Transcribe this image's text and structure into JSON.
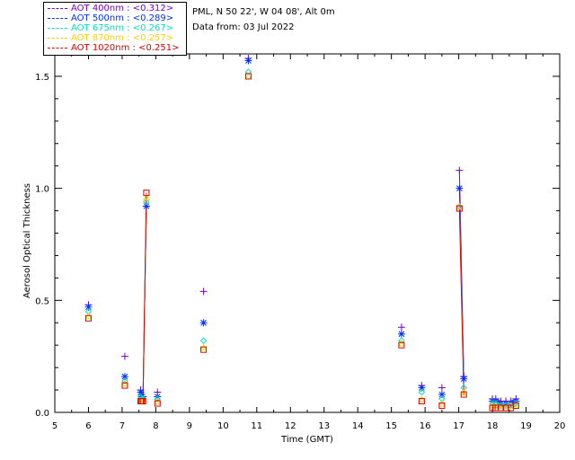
{
  "legend": [
    {
      "label": "AOT  400nm : <0.312>",
      "color": "#7a00c8"
    },
    {
      "label": "AOT  500nm : <0.289>",
      "color": "#0030ff"
    },
    {
      "label": "AOT  675nm : <0.267>",
      "color": "#00e0c0"
    },
    {
      "label": "AOT  870nm : <0.257>",
      "color": "#ffd000"
    },
    {
      "label": "AOT 1020nm : <0.251>",
      "color": "#e00000"
    }
  ],
  "info": {
    "site": "PML, N 50 22', W 04 08', Alt 0m",
    "date": "Data from: 03 Jul 2022"
  },
  "chart_data": {
    "type": "scatter",
    "title": "",
    "xlabel": "Time (GMT)",
    "ylabel": "Aerosol Optical Thickness",
    "xlim": [
      5,
      20
    ],
    "ylim": [
      0,
      1.6
    ],
    "xticks": [
      "5",
      "6",
      "7",
      "8",
      "9",
      "10",
      "11",
      "12",
      "13",
      "14",
      "15",
      "16",
      "17",
      "18",
      "19",
      "20"
    ],
    "yticks": [
      "0.0",
      "0.5",
      "1.0",
      "1.5"
    ],
    "x": [
      6.0,
      7.08,
      7.55,
      7.58,
      7.62,
      7.72,
      8.05,
      9.42,
      10.75,
      15.3,
      15.9,
      16.5,
      17.02,
      17.15,
      18.0,
      18.1,
      18.25,
      18.4,
      18.55,
      18.7
    ],
    "series": [
      {
        "name": "AOT 400nm",
        "marker": "plus",
        "color": "#7a00c8",
        "values": [
          0.48,
          0.25,
          0.1,
          0.08,
          0.07,
          0.92,
          0.09,
          0.54,
          1.58,
          0.38,
          0.12,
          0.11,
          1.08,
          0.16,
          0.06,
          0.06,
          0.05,
          0.05,
          0.05,
          0.06
        ]
      },
      {
        "name": "AOT 500nm",
        "marker": "asterisk",
        "color": "#0030ff",
        "values": [
          0.47,
          0.16,
          0.09,
          0.07,
          0.06,
          0.92,
          0.07,
          0.4,
          1.57,
          0.35,
          0.11,
          0.08,
          1.0,
          0.15,
          0.05,
          0.05,
          0.04,
          0.04,
          0.04,
          0.05
        ]
      },
      {
        "name": "AOT 675nm",
        "marker": "diamond",
        "color": "#00e0c0",
        "values": [
          0.45,
          0.14,
          0.07,
          0.06,
          0.06,
          0.94,
          0.06,
          0.32,
          1.52,
          0.32,
          0.09,
          0.06,
          0.92,
          0.11,
          0.04,
          0.04,
          0.03,
          0.03,
          0.03,
          0.04
        ]
      },
      {
        "name": "AOT 870nm",
        "marker": "triangle",
        "color": "#ffd000",
        "values": [
          0.43,
          0.13,
          0.05,
          0.05,
          0.05,
          0.96,
          0.05,
          0.29,
          1.5,
          0.31,
          0.06,
          0.04,
          0.92,
          0.09,
          0.03,
          0.03,
          0.02,
          0.02,
          0.03,
          0.03
        ]
      },
      {
        "name": "AOT 1020nm",
        "marker": "square",
        "color": "#e00000",
        "values": [
          0.42,
          0.12,
          0.05,
          0.05,
          0.05,
          0.98,
          0.04,
          0.28,
          1.5,
          0.3,
          0.05,
          0.03,
          0.91,
          0.08,
          0.02,
          0.02,
          0.02,
          0.02,
          0.02,
          0.03
        ]
      }
    ]
  }
}
